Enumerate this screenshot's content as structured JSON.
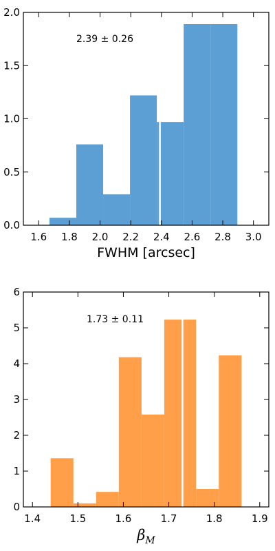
{
  "chart_data": [
    {
      "type": "bar",
      "title": "",
      "xlabel": "FWHM [arcsec]",
      "ylabel": "",
      "xlim": [
        1.5,
        3.1
      ],
      "ylim": [
        0,
        2.0
      ],
      "xticks": [
        1.6,
        1.8,
        2.0,
        2.2,
        2.4,
        2.6,
        2.8,
        3.0
      ],
      "yticks": [
        0.0,
        0.5,
        1.0,
        1.5,
        2.0
      ],
      "xtick_labels": [
        "1.6",
        "1.8",
        "2.0",
        "2.2",
        "2.4",
        "2.6",
        "2.8",
        "3.0"
      ],
      "ytick_labels": [
        "0.0",
        "0.5",
        "1.0",
        "1.5",
        "2.0"
      ],
      "bin_edges": [
        1.67,
        1.845,
        2.02,
        2.195,
        2.37,
        2.545,
        2.72,
        2.895
      ],
      "split_bins": [
        2.195,
        2.37,
        2.545,
        2.72
      ],
      "bars": [
        {
          "x0": 1.67,
          "x1": 1.845,
          "value": 0.07
        },
        {
          "x0": 1.845,
          "x1": 2.02,
          "value": 0.76
        },
        {
          "x0": 2.02,
          "x1": 2.195,
          "value": 0.29
        },
        {
          "x0": 2.195,
          "x1": 2.37,
          "value": 1.22
        },
        {
          "x0": 2.37,
          "x1": 2.545,
          "value": 0.97
        },
        {
          "x0": 2.545,
          "x1": 2.72,
          "value": 1.89
        },
        {
          "x0": 2.72,
          "x1": 2.895,
          "value": 1.89
        }
      ],
      "marker_x": 2.39,
      "annotation": "2.39 ± 0.26",
      "color": "#5b9fd4",
      "grid": false
    },
    {
      "type": "bar",
      "title": "",
      "xlabel": "βM",
      "ylabel": "",
      "xlim": [
        1.38,
        1.92
      ],
      "ylim": [
        0,
        6
      ],
      "xticks": [
        1.4,
        1.5,
        1.6,
        1.7,
        1.8,
        1.9
      ],
      "yticks": [
        0,
        1,
        2,
        3,
        4,
        5,
        6
      ],
      "xtick_labels": [
        "1.4",
        "1.5",
        "1.6",
        "1.7",
        "1.8",
        "1.9"
      ],
      "ytick_labels": [
        "0",
        "1",
        "2",
        "3",
        "4",
        "5",
        "6"
      ],
      "bars": [
        {
          "x0": 1.44,
          "x1": 1.49,
          "value": 1.36
        },
        {
          "x0": 1.49,
          "x1": 1.54,
          "value": 0.1
        },
        {
          "x0": 1.54,
          "x1": 1.59,
          "value": 0.42
        },
        {
          "x0": 1.59,
          "x1": 1.64,
          "value": 4.18
        },
        {
          "x0": 1.64,
          "x1": 1.69,
          "value": 2.58
        },
        {
          "x0": 1.69,
          "x1": 1.73,
          "value": 5.23
        },
        {
          "x0": 1.73,
          "x1": 1.76,
          "value": 5.23
        },
        {
          "x0": 1.76,
          "x1": 1.81,
          "value": 0.5
        },
        {
          "x0": 1.81,
          "x1": 1.86,
          "value": 4.23
        }
      ],
      "marker_x": 1.73,
      "annotation": "1.73 ± 0.11",
      "color": "#ff9f4a",
      "grid": false
    }
  ]
}
